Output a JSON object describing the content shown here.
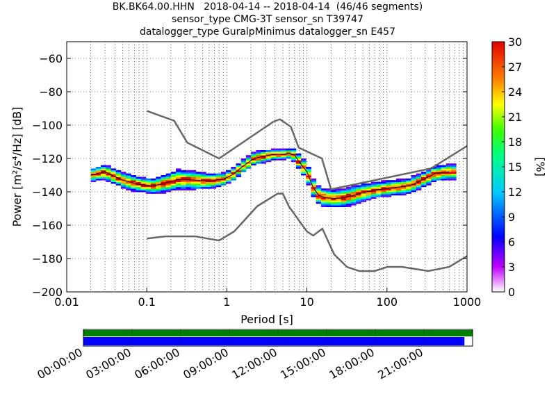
{
  "title_lines": [
    "BK.BK64.00.HHN   2018-04-14 -- 2018-04-14  (46/46 segments)",
    "sensor_type CMG-3T sensor_sn T39747",
    "datalogger_type GuralpMinimus datalogger_sn E457"
  ],
  "chart_data": {
    "type": "heatmap",
    "xlabel": "Period [s]",
    "ylabel": "Power [m²/s⁴/Hz] [dB]",
    "xscale": "log",
    "xlim": [
      0.01,
      1000
    ],
    "ylim": [
      -200,
      -50
    ],
    "x_ticks": [
      "0.01",
      "0.1",
      "1",
      "10",
      "100",
      "1000"
    ],
    "y_ticks": [
      "−60",
      "−80",
      "−100",
      "−120",
      "−140",
      "−160",
      "−180",
      "−200"
    ],
    "grid": true,
    "colorbar": {
      "label": "[%]",
      "range": [
        0,
        30
      ],
      "ticks": [
        "0",
        "3",
        "6",
        "9",
        "12",
        "15",
        "18",
        "21",
        "24",
        "27",
        "30"
      ]
    },
    "ppsd_center_line": {
      "period": [
        0.02,
        0.03,
        0.05,
        0.08,
        0.12,
        0.18,
        0.25,
        0.4,
        0.6,
        0.9,
        1.2,
        1.6,
        2.2,
        3,
        4,
        5,
        6,
        7,
        8,
        10,
        12,
        14,
        17,
        22,
        30,
        45,
        70,
        100,
        150,
        200,
        300,
        400,
        600
      ],
      "db": [
        -130,
        -128,
        -133,
        -135.5,
        -136.5,
        -134.5,
        -132.5,
        -133,
        -133.5,
        -132.5,
        -129.5,
        -124.5,
        -120,
        -118.5,
        -117.5,
        -117.5,
        -117,
        -118,
        -122,
        -128,
        -137.5,
        -142,
        -143.5,
        -144,
        -143.5,
        -141,
        -139,
        -138,
        -137,
        -136,
        -132,
        -129,
        -128
      ]
    },
    "ppsd_spread": [
      2.5,
      3,
      3,
      3,
      3,
      3.5,
      4,
      3.5,
      3,
      2.5,
      2.5,
      2.5,
      2.5,
      2.5,
      2,
      2,
      2,
      2.5,
      3,
      3.5,
      3.5,
      3.5,
      3.5,
      3.5,
      3.5,
      3.5,
      3,
      3,
      3,
      3,
      3,
      3,
      3
    ],
    "nhnm": {
      "period": [
        0.1,
        0.22,
        0.32,
        0.8,
        3.8,
        4.6,
        6.3,
        7.9,
        15.4,
        20,
        354.8,
        1000
      ],
      "db": [
        -91.5,
        -97.4,
        -110.5,
        -120,
        -98,
        -96.5,
        -101,
        -113.5,
        -120,
        -138.5,
        -126,
        -112.5
      ]
    },
    "nlnm": {
      "period": [
        0.1,
        0.17,
        0.4,
        0.8,
        1.24,
        2.4,
        4.3,
        5,
        6,
        10,
        12,
        15.6,
        21.9,
        31.6,
        45,
        70,
        101,
        154,
        328,
        600,
        1000
      ],
      "db": [
        -168,
        -166.7,
        -166.7,
        -169.2,
        -163.7,
        -148.6,
        -141.1,
        -141.1,
        -149,
        -163.8,
        -166.2,
        -162.1,
        -177.5,
        -185,
        -187.5,
        -187.5,
        -185,
        -185,
        -187.5,
        -185,
        -178.5
      ]
    },
    "coverage": {
      "time_ticks": [
        "00:00:00",
        "03:00:00",
        "06:00:00",
        "09:00:00",
        "12:00:00",
        "15:00:00",
        "18:00:00",
        "21:00:00"
      ],
      "data_fraction": 1.0,
      "psd_fraction": 0.979
    }
  },
  "colors": {
    "nhnm_nlnm": "#666666",
    "coverage_data": "#008000",
    "coverage_psd": "#0000ff",
    "center_line": "#000000"
  }
}
